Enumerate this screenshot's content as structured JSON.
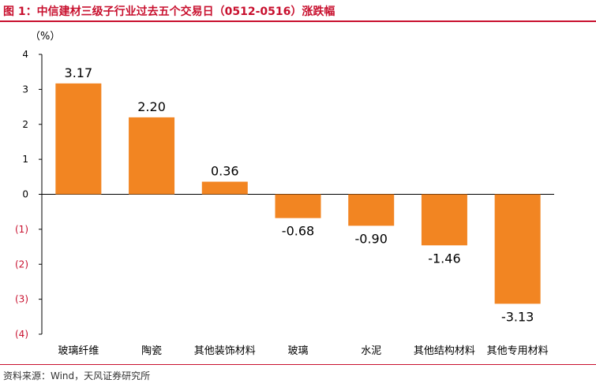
{
  "header": {
    "title": "图 1：中信建材三级子行业过去五个交易日（0512-0516）涨跌幅"
  },
  "footer": {
    "source": "资料来源：Wind，天风证券研究所"
  },
  "colors": {
    "bar": "#f28522",
    "negative_tick": "#c8102e",
    "title": "#c8102e"
  },
  "chart_data": {
    "type": "bar",
    "title": "",
    "unit_label": "（%）",
    "xlabel": "",
    "ylabel": "",
    "ylim": [
      -4,
      4
    ],
    "categories": [
      "玻璃纤维",
      "陶瓷",
      "其他装饰材料",
      "玻璃",
      "水泥",
      "其他结构材料",
      "其他专用材料"
    ],
    "values": [
      3.17,
      2.2,
      0.36,
      -0.68,
      -0.9,
      -1.46,
      -3.13
    ],
    "value_labels": [
      "3.17",
      "2.20",
      "0.36",
      "-0.68",
      "-0.90",
      "-1.46",
      "-3.13"
    ],
    "y_ticks": [
      4,
      3,
      2,
      1,
      0,
      -1,
      -2,
      -3,
      -4
    ],
    "y_tick_labels": [
      "4",
      "3",
      "2",
      "1",
      "0",
      "(1)",
      "(2)",
      "(3)",
      "(4)"
    ],
    "grid": false
  }
}
